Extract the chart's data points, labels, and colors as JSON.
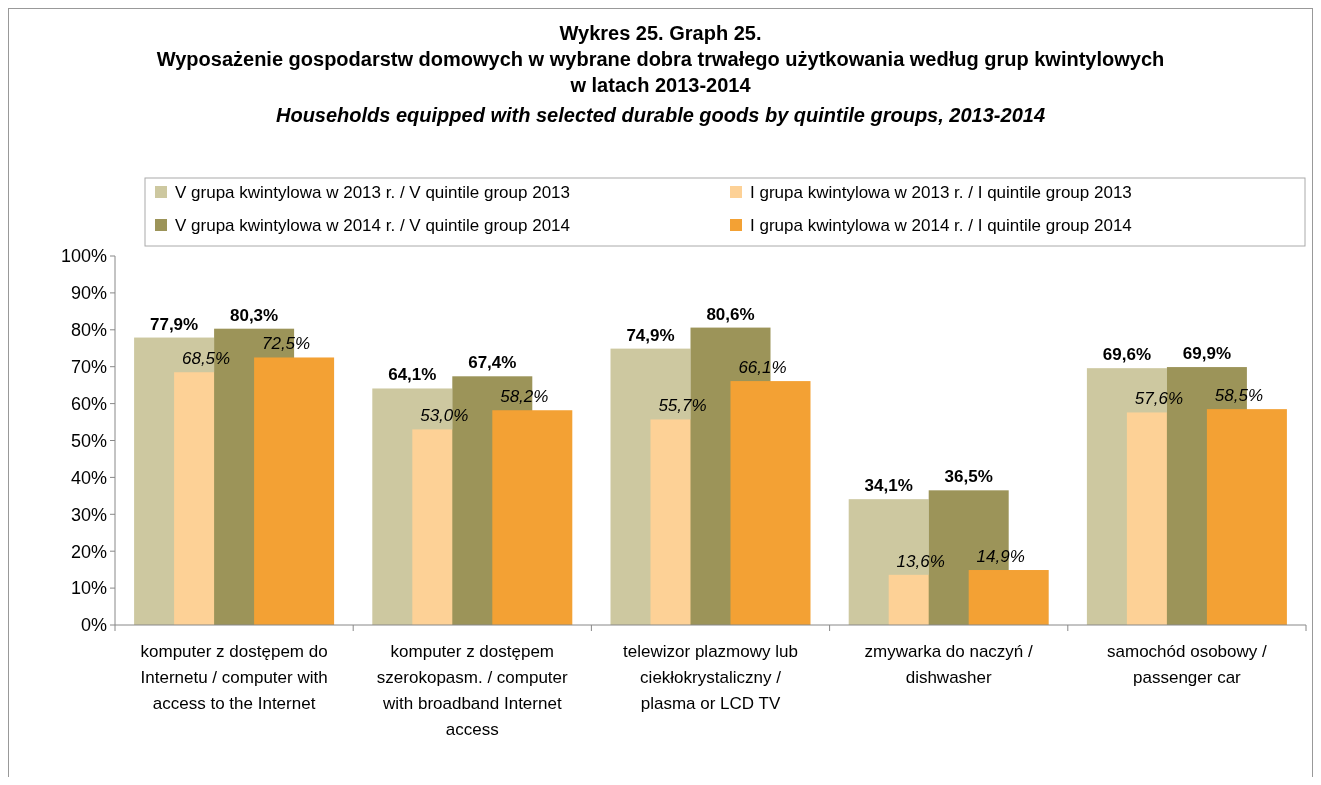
{
  "chart_data": {
    "type": "bar",
    "title": "Wykres 25. Graph 25.\nWyposażenie gospodarstw domowych w wybrane dobra trwałego użytkowania według grup kwintylowych\nw latach 2013-2014",
    "subtitle": "Households equipped with selected durable goods by quintile groups, 2013-2014",
    "categories": [
      "komputer z dostępem do Internetu / computer with access to the Internet",
      "komputer z dostępem szerokopasm. / computer with broadband Internet access",
      "telewizor plazmowy lub ciekłokrystaliczny / plasma or LCD TV",
      "zmywarka do naczyń / dishwasher",
      "samochód osobowy / passenger car"
    ],
    "series": [
      {
        "name": "V grupa kwintylowa w 2013 r. / V quintile group 2013",
        "color": "#cdc8a0",
        "values": [
          77.9,
          64.1,
          74.9,
          34.1,
          69.6
        ],
        "value_labels": [
          "77,9%",
          "64,1%",
          "74,9%",
          "34,1%",
          "69,6%"
        ]
      },
      {
        "name": "I grupa kwintylowa w 2013 r. / I quintile group 2013",
        "color": "#fdd196",
        "values": [
          68.5,
          53.0,
          55.7,
          13.6,
          57.6
        ],
        "value_labels": [
          "68,5%",
          "53,0%",
          "55,7%",
          "13,6%",
          "57,6%"
        ]
      },
      {
        "name": "V grupa kwintylowa w 2014 r. / V quintile group 2014",
        "color": "#9c9459",
        "values": [
          80.3,
          67.4,
          80.6,
          36.5,
          69.9
        ],
        "value_labels": [
          "80,3%",
          "67,4%",
          "80,6%",
          "36,5%",
          "69,9%"
        ]
      },
      {
        "name": "I grupa kwintylowa w 2014 r. / I quintile group 2014",
        "color": "#f3a134",
        "values": [
          72.5,
          58.2,
          66.1,
          14.9,
          58.5
        ],
        "value_labels": [
          "72,5%",
          "58,2%",
          "66,1%",
          "14,9%",
          "58,5%"
        ]
      }
    ],
    "ylim": [
      0,
      100
    ],
    "yticks": [
      {
        "value": 0,
        "label": "0%"
      },
      {
        "value": 10,
        "label": "10%"
      },
      {
        "value": 20,
        "label": "20%"
      },
      {
        "value": 30,
        "label": "30%"
      },
      {
        "value": 40,
        "label": "40%"
      },
      {
        "value": 50,
        "label": "50%"
      },
      {
        "value": 60,
        "label": "60%"
      },
      {
        "value": 70,
        "label": "70%"
      },
      {
        "value": 80,
        "label": "80%"
      },
      {
        "value": 90,
        "label": "90%"
      },
      {
        "value": 100,
        "label": "100%"
      }
    ],
    "grid": false,
    "legend": "top"
  }
}
